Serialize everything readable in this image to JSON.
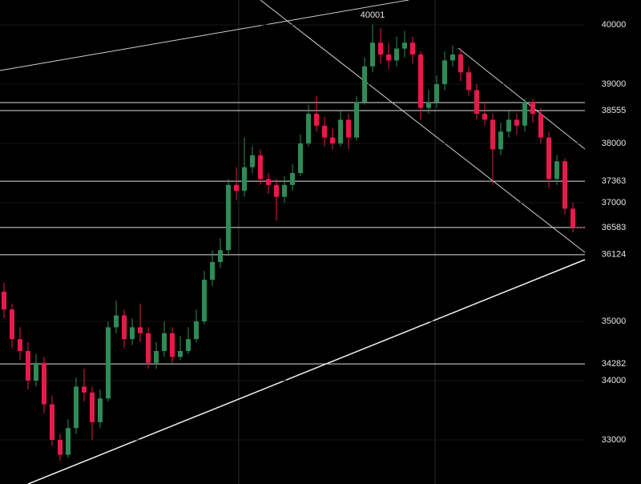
{
  "chart_data": {
    "type": "candlestick",
    "annotation": "40001",
    "up_color": "#2e8b57",
    "down_color": "#e8194b",
    "ylim": [
      32257,
      40419
    ],
    "yticks": [
      40000,
      39000,
      38555,
      38000,
      37363,
      37000,
      36583,
      36124,
      35000,
      34282,
      34000,
      33000
    ],
    "open": [
      35500,
      35200,
      34700,
      34500,
      34000,
      34300,
      33600,
      33000,
      32750,
      33200,
      33900,
      33800,
      33300,
      33700,
      34900,
      35100,
      34700,
      34900,
      34800,
      34300,
      34500,
      34800,
      34400,
      34500,
      34700,
      35000,
      35700,
      36000,
      36200,
      37300,
      37200,
      37600,
      37800,
      37400,
      37300,
      37100,
      37300,
      37500,
      38000,
      38500,
      38300,
      38100,
      38000,
      38400,
      38100,
      38700,
      39300,
      39700,
      39500,
      39400,
      39600,
      39700,
      39500,
      38600,
      38700,
      39000,
      39400,
      39500,
      39200,
      38900,
      38500,
      38400,
      37900,
      38200,
      38400,
      38300,
      38700,
      38500,
      38100,
      37400,
      37700,
      36900
    ],
    "high": [
      35650,
      35300,
      34900,
      34650,
      34450,
      34400,
      33750,
      33100,
      33350,
      34050,
      34200,
      33900,
      33850,
      35000,
      35350,
      35200,
      35050,
      35300,
      34900,
      34650,
      35000,
      34900,
      34750,
      34900,
      35200,
      35850,
      36200,
      36400,
      37400,
      37600,
      38100,
      37950,
      37900,
      37500,
      37400,
      37450,
      37650,
      38150,
      38650,
      38800,
      38450,
      38250,
      38550,
      38500,
      38800,
      39450,
      40001,
      39950,
      39700,
      39800,
      39900,
      39800,
      39550,
      38900,
      39150,
      39550,
      39650,
      39600,
      39300,
      39000,
      38700,
      38500,
      38350,
      38550,
      38500,
      38750,
      38750,
      38600,
      38200,
      37800,
      37750,
      37000
    ],
    "low": [
      35050,
      34550,
      34350,
      33850,
      33900,
      33450,
      32900,
      32650,
      32700,
      33100,
      33650,
      33000,
      33200,
      33650,
      34800,
      34550,
      34600,
      34650,
      34200,
      34200,
      34400,
      34300,
      34350,
      34450,
      34650,
      34950,
      35600,
      35900,
      36100,
      37050,
      37100,
      37500,
      37300,
      37150,
      36700,
      37000,
      37200,
      37450,
      37950,
      38200,
      37950,
      37900,
      37950,
      37900,
      38050,
      38650,
      39200,
      39350,
      39250,
      39300,
      39450,
      39350,
      38400,
      38500,
      38600,
      38900,
      39300,
      39050,
      38800,
      38400,
      38300,
      37300,
      37800,
      38100,
      38150,
      38200,
      38350,
      38000,
      37250,
      37300,
      36800,
      36500
    ],
    "close": [
      35200,
      34700,
      34500,
      34000,
      34300,
      33600,
      33000,
      32750,
      33200,
      33900,
      33800,
      33300,
      33700,
      34900,
      35100,
      34700,
      34900,
      34800,
      34300,
      34500,
      34800,
      34400,
      34500,
      34700,
      35000,
      35700,
      36000,
      36200,
      37300,
      37200,
      37600,
      37800,
      37400,
      37300,
      37100,
      37300,
      37500,
      38000,
      38500,
      38300,
      38100,
      38000,
      38400,
      38100,
      38700,
      39300,
      39700,
      39500,
      39400,
      39600,
      39700,
      39500,
      38600,
      38700,
      39000,
      39400,
      39500,
      39200,
      38900,
      38500,
      38400,
      37900,
      38200,
      38400,
      38300,
      38700,
      38500,
      38100,
      37400,
      37700,
      36900,
      36583
    ]
  }
}
